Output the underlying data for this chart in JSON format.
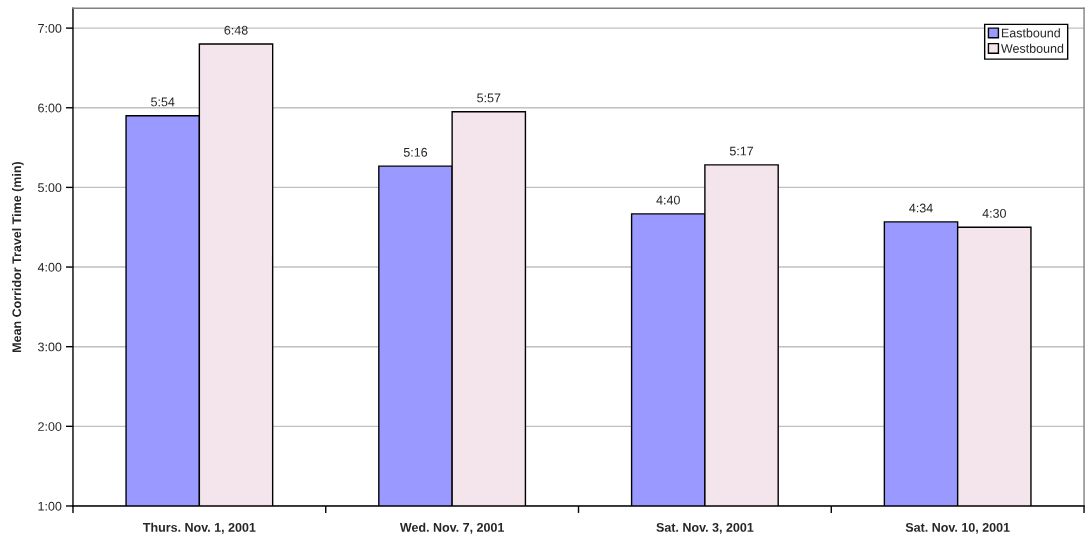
{
  "chart_data": {
    "type": "bar",
    "ylabel": "Mean Corridor Travel Time (min)",
    "categories": [
      "Thurs. Nov. 1, 2001",
      "Wed. Nov. 7, 2001",
      "Sat. Nov. 3, 2001",
      "Sat. Nov. 10, 2001"
    ],
    "series": [
      {
        "name": "Eastbound",
        "color": "#9999ff",
        "values": [
          5.9,
          5.267,
          4.667,
          4.567
        ],
        "value_labels": [
          "5:54",
          "5:16",
          "4:40",
          "4:34"
        ]
      },
      {
        "name": "Westbound",
        "color": "#f4e4ec",
        "values": [
          6.8,
          5.95,
          5.283,
          4.5
        ],
        "value_labels": [
          "6:48",
          "5:57",
          "5:17",
          "4:30"
        ]
      }
    ],
    "ylim": [
      1,
      7.25
    ],
    "yticks": [
      {
        "value": 1,
        "label": "1:00"
      },
      {
        "value": 2,
        "label": "2:00"
      },
      {
        "value": 3,
        "label": "3:00"
      },
      {
        "value": 4,
        "label": "4:00"
      },
      {
        "value": 5,
        "label": "5:00"
      },
      {
        "value": 6,
        "label": "6:00"
      },
      {
        "value": 7,
        "label": "7:00"
      }
    ],
    "grid": "y",
    "legend": "top right"
  }
}
